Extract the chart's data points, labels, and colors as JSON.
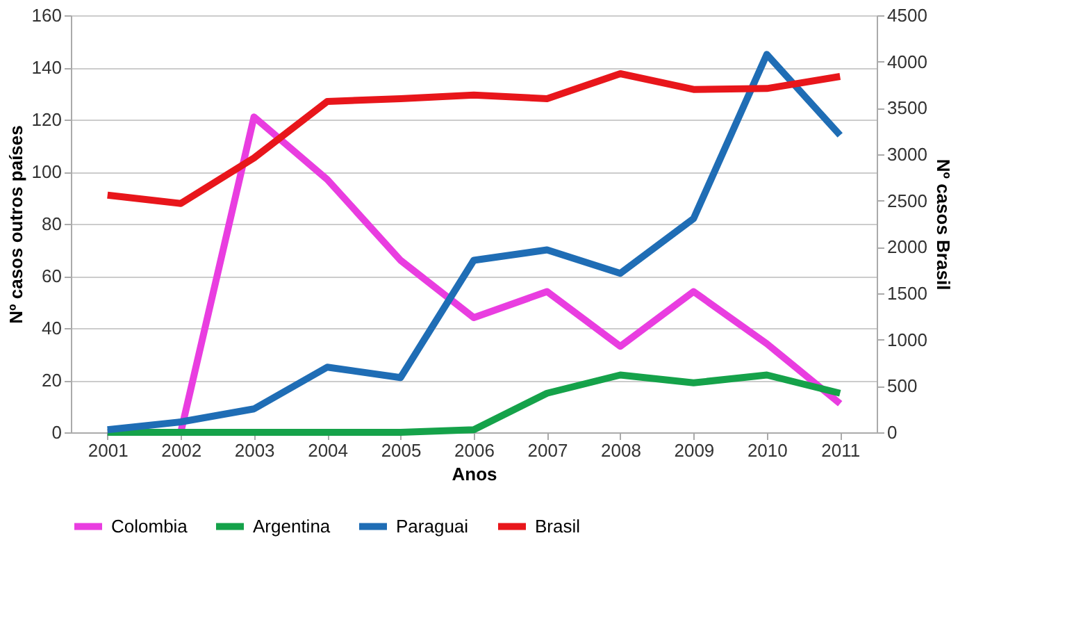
{
  "chart_data": {
    "type": "line",
    "xlabel": "Anos",
    "ylabel": "Nº casos outros países",
    "y2label": "Nº casos Brasil",
    "categories": [
      "2001",
      "2002",
      "2003",
      "2004",
      "2005",
      "2006",
      "2007",
      "2008",
      "2009",
      "2010",
      "2011"
    ],
    "series": [
      {
        "name": "Colombia",
        "color": "#e93de0",
        "values": [
          0,
          0,
          121,
          97,
          66,
          44,
          54,
          33,
          54,
          34,
          11
        ]
      },
      {
        "name": "Argentina",
        "color": "#15a24a",
        "values": [
          0,
          0,
          0,
          0,
          0,
          1,
          15,
          22,
          19,
          22,
          15
        ]
      },
      {
        "name": "Paraguai",
        "color": "#1f6db5",
        "values": [
          1,
          4,
          9,
          25,
          21,
          66,
          70,
          61,
          82,
          145,
          114
        ]
      },
      {
        "name": "Brasil",
        "color": "#e8161b",
        "axis": "y2",
        "values": [
          2560,
          2470,
          2960,
          3570,
          3600,
          3640,
          3600,
          3870,
          3700,
          3710,
          3840
        ]
      }
    ],
    "ylim": [
      0,
      160
    ],
    "yticks": [
      0,
      20,
      40,
      60,
      80,
      100,
      120,
      140,
      160
    ],
    "y2lim": [
      0,
      4500
    ],
    "y2ticks": [
      0,
      500,
      1000,
      1500,
      2000,
      2500,
      3000,
      3500,
      4000,
      4500
    ],
    "grid": "y",
    "legend": "bottom",
    "marker": "none",
    "line_style": "solid"
  }
}
